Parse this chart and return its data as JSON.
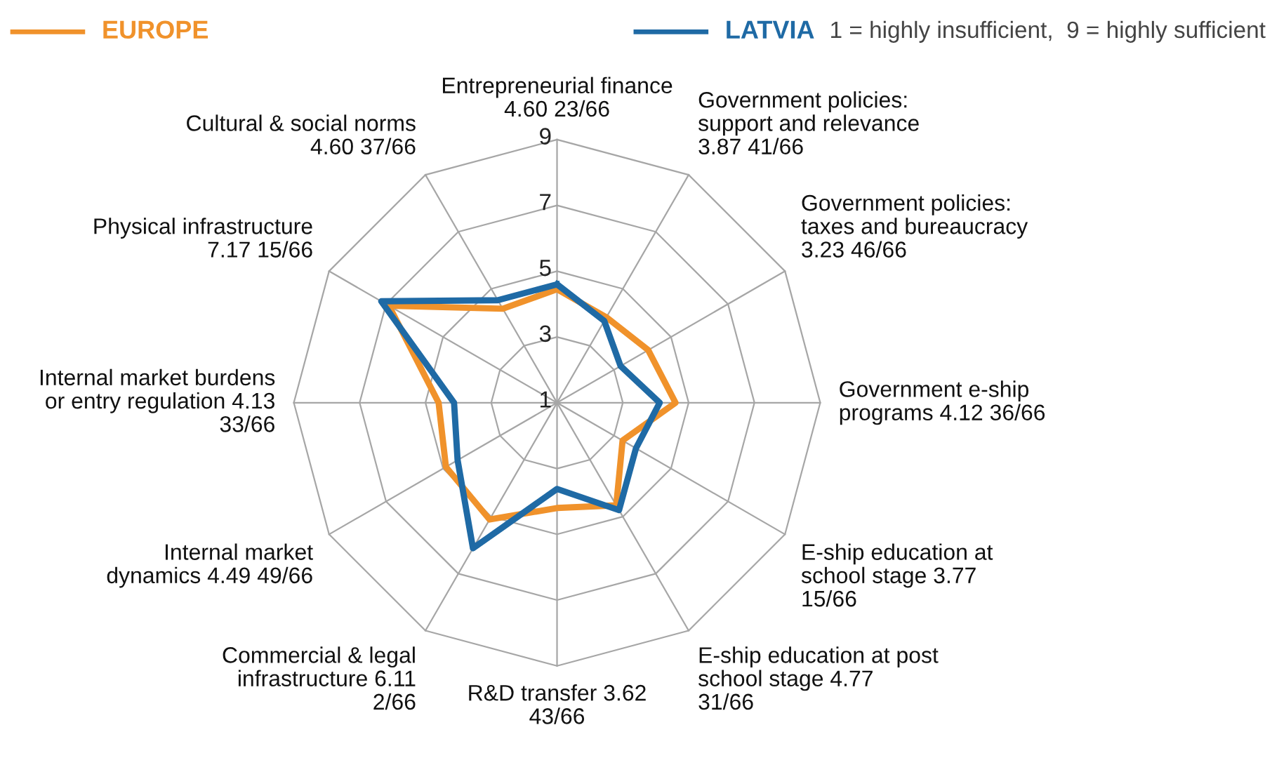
{
  "chart_data": {
    "type": "radar",
    "categories": [
      "Entrepreneurial finance\n4.60 23/66",
      "Government policies:\nsupport and relevance\n3.87 41/66",
      "Government policies:\ntaxes and bureaucracy\n3.23 46/66",
      "Government e-ship\nprograms 4.12 36/66",
      "E-ship education at\nschool stage 3.77\n15/66",
      "E-ship education at post\nschool stage 4.77\n31/66",
      "R&D transfer 3.62\n43/66",
      "Commercial & legal\ninfrastructure 6.11\n2/66",
      "Internal market\ndynamics 4.49 49/66",
      "Internal market burdens\nor entry regulation 4.13\n33/66",
      "Physical infrastructure\n7.17 15/66",
      "Cultural & social norms\n4.60 37/66"
    ],
    "series": [
      {
        "name": "EUROPE",
        "color": "#f0922b",
        "values": [
          4.45,
          4.0,
          4.2,
          4.6,
          3.3,
          4.6,
          4.2,
          5.1,
          4.9,
          4.6,
          6.9,
          4.3
        ]
      },
      {
        "name": "LATVIA",
        "color": "#1f6aa5",
        "values": [
          4.6,
          3.87,
          3.23,
          4.12,
          3.77,
          4.77,
          3.62,
          6.11,
          4.49,
          4.13,
          7.17,
          4.6
        ]
      }
    ],
    "ylim": [
      1,
      9
    ],
    "yticks": [
      1,
      3,
      5,
      7,
      9
    ],
    "grid": true,
    "legend": "top",
    "marker": "none",
    "annotations": [
      "1 = highly insufficient,  9 = highly sufficient"
    ]
  }
}
